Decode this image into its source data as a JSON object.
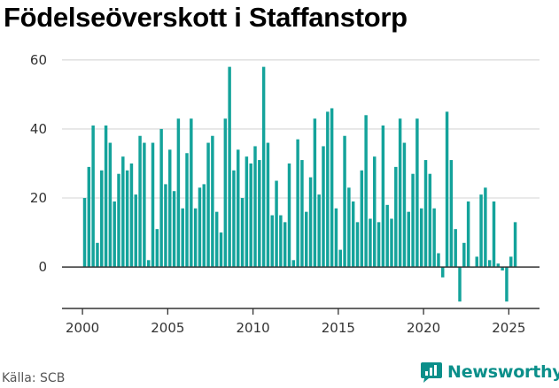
{
  "title": "Födelseöverskott i Staffanstorp",
  "source": "Källa: SCB",
  "brand": {
    "name": "Newsworthy",
    "icon": "newsworthy-logo-icon"
  },
  "colors": {
    "bar": "#14a39b",
    "brand": "#0b8f8a",
    "grid": "#dddddd",
    "axis": "#333333"
  },
  "chart_data": {
    "type": "bar",
    "x_start": 2000.0,
    "x_step": 0.25,
    "y_ticks": [
      0,
      20,
      40,
      60
    ],
    "x_ticks": [
      2000,
      2005,
      2010,
      2015,
      2020,
      2025
    ],
    "ylim": [
      -12,
      62
    ],
    "xlim": [
      1998.8,
      2026.8
    ],
    "grid": true,
    "values": [
      20,
      29,
      41,
      7,
      28,
      41,
      36,
      19,
      27,
      32,
      28,
      30,
      21,
      38,
      36,
      2,
      36,
      11,
      40,
      24,
      34,
      22,
      43,
      17,
      33,
      43,
      17,
      23,
      24,
      36,
      38,
      16,
      10,
      43,
      58,
      28,
      34,
      20,
      32,
      30,
      35,
      31,
      58,
      36,
      15,
      25,
      15,
      13,
      30,
      2,
      37,
      31,
      16,
      26,
      43,
      21,
      35,
      45,
      46,
      17,
      5,
      38,
      23,
      19,
      13,
      28,
      44,
      14,
      32,
      13,
      41,
      18,
      14,
      29,
      43,
      36,
      16,
      27,
      43,
      17,
      31,
      27,
      17,
      4,
      -3,
      45,
      31,
      11,
      -10,
      7,
      19,
      0,
      3,
      21,
      23,
      2,
      19,
      1,
      -1,
      -10,
      3,
      13
    ]
  }
}
